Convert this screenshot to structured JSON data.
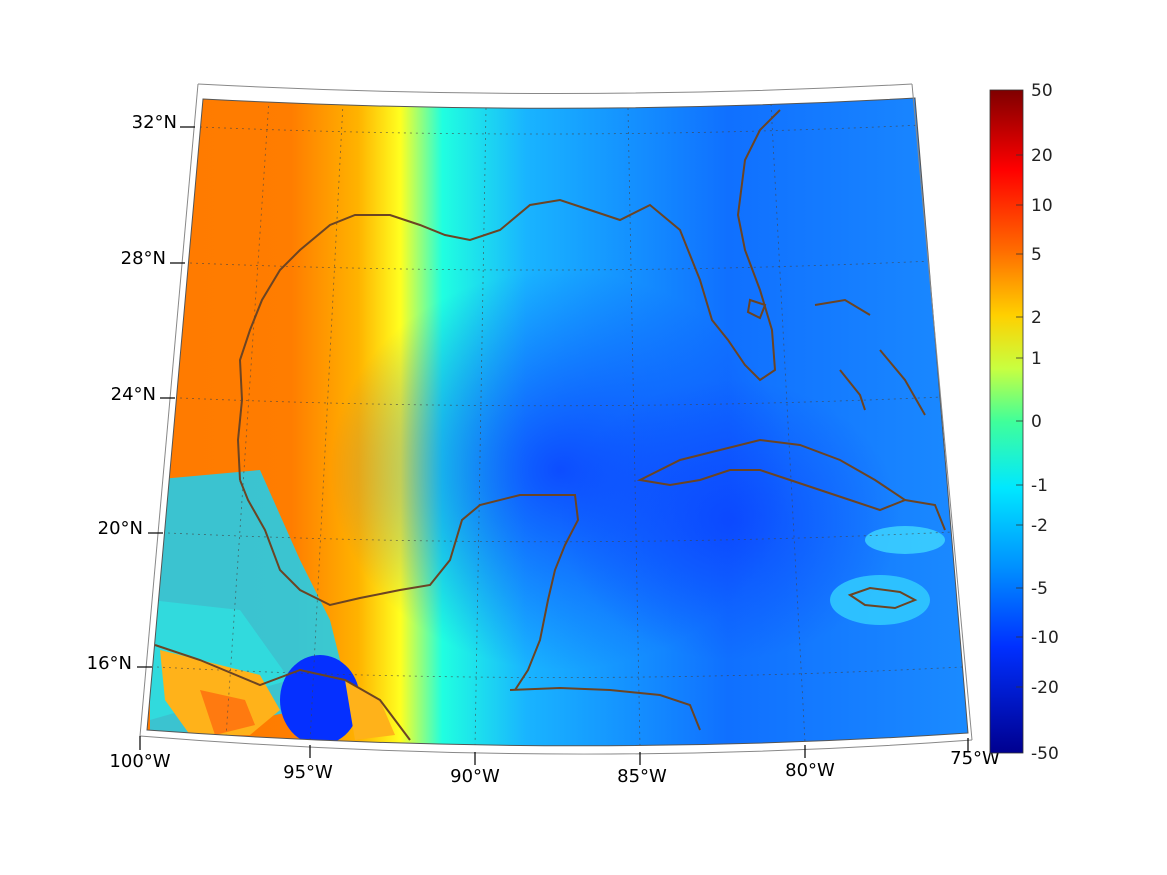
{
  "map": {
    "lat_labels": [
      "32°N",
      "28°N",
      "24°N",
      "20°N",
      "16°N"
    ],
    "lon_labels": [
      "100°W",
      "95°W",
      "90°W",
      "85°W",
      "80°W",
      "75°W"
    ],
    "coastline_color": "#6b4423"
  },
  "colorbar": {
    "tick_labels": [
      "50",
      "20",
      "10",
      "5",
      "2",
      "1",
      "0",
      "-1",
      "-2",
      "-5",
      "-10",
      "-20",
      "-50"
    ],
    "colors": [
      "#7f0000",
      "#ff0000",
      "#ff8000",
      "#ffff00",
      "#80ff80",
      "#00ffff",
      "#0080ff",
      "#0000ff",
      "#00008f"
    ]
  }
}
